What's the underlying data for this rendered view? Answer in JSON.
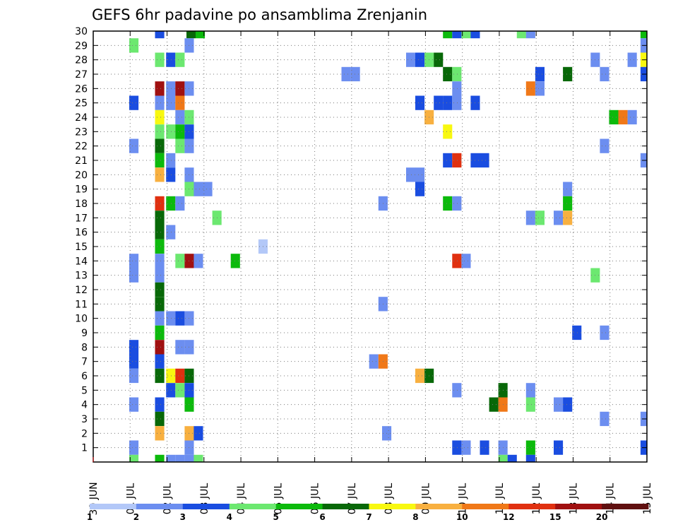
{
  "chart_data": {
    "type": "heatmap",
    "title": "GEFS 6hr padavine po ansamblima Zrenjanin",
    "xlabel": "",
    "ylabel": "",
    "x_tick_labels": [
      "30 JUN",
      "01 JUL",
      "02 JUL",
      "03 JUL",
      "04 JUL",
      "05 JUL",
      "06 JUL",
      "07 JUL",
      "08 JUL",
      "09 JUL",
      "10 JUL",
      "11 JUL",
      "12 JUL",
      "13 JUL",
      "14 JUL",
      "15 JUL"
    ],
    "x_range_days": [
      0,
      15
    ],
    "y_range": [
      0,
      30
    ],
    "y_tick_labels": [
      1,
      2,
      3,
      4,
      5,
      6,
      7,
      8,
      9,
      10,
      11,
      12,
      13,
      14,
      15,
      16,
      17,
      18,
      19,
      20,
      21,
      22,
      23,
      24,
      25,
      26,
      27,
      28,
      29,
      30
    ],
    "grid": true,
    "colorbar": {
      "placement": "bottom",
      "boundary_labels": [
        "1",
        "2",
        "3",
        "4",
        "5",
        "6",
        "7",
        "8",
        "10",
        "12",
        "15",
        "20"
      ],
      "colors": [
        "#b3c8f8",
        "#6c8ef0",
        "#1a4de0",
        "#6ce870",
        "#0cba0c",
        "#086808",
        "#f8f810",
        "#f8b040",
        "#f07818",
        "#e03010",
        "#a01010",
        "#601010"
      ]
    },
    "levels_legend": "cell level index L means precipitation between the L-th and (L+1)-th colorbar boundary",
    "cells": [
      [
        30,
        1.8,
        2
      ],
      [
        30,
        2.65,
        5
      ],
      [
        30,
        2.9,
        4
      ],
      [
        30,
        9.6,
        4
      ],
      [
        30,
        9.85,
        2
      ],
      [
        30,
        10.1,
        3
      ],
      [
        30,
        10.35,
        2
      ],
      [
        30,
        11.6,
        3
      ],
      [
        30,
        11.85,
        1
      ],
      [
        30,
        14.95,
        4
      ],
      [
        29,
        1.1,
        3
      ],
      [
        29,
        2.6,
        1
      ],
      [
        29,
        14.95,
        1
      ],
      [
        28,
        1.8,
        3
      ],
      [
        28,
        2.1,
        2
      ],
      [
        28,
        2.35,
        3
      ],
      [
        28,
        8.6,
        1
      ],
      [
        28,
        8.85,
        2
      ],
      [
        28,
        9.1,
        3
      ],
      [
        28,
        9.35,
        5
      ],
      [
        28,
        13.6,
        1
      ],
      [
        28,
        14.6,
        1
      ],
      [
        28,
        14.95,
        6
      ],
      [
        27,
        6.85,
        1
      ],
      [
        27,
        7.1,
        1
      ],
      [
        27,
        9.6,
        5
      ],
      [
        27,
        9.85,
        3
      ],
      [
        27,
        12.1,
        2
      ],
      [
        27,
        12.85,
        5
      ],
      [
        27,
        13.85,
        1
      ],
      [
        27,
        14.95,
        2
      ],
      [
        26,
        1.8,
        10
      ],
      [
        26,
        2.1,
        1
      ],
      [
        26,
        2.35,
        10
      ],
      [
        26,
        2.6,
        1
      ],
      [
        26,
        9.85,
        1
      ],
      [
        26,
        11.85,
        8
      ],
      [
        26,
        12.1,
        1
      ],
      [
        25,
        1.1,
        2
      ],
      [
        25,
        1.8,
        1
      ],
      [
        25,
        2.1,
        1
      ],
      [
        25,
        2.35,
        8
      ],
      [
        25,
        8.85,
        2
      ],
      [
        25,
        9.35,
        2
      ],
      [
        25,
        9.6,
        2
      ],
      [
        25,
        9.85,
        1
      ],
      [
        25,
        10.35,
        2
      ],
      [
        24,
        1.8,
        6
      ],
      [
        24,
        2.35,
        1
      ],
      [
        24,
        2.6,
        3
      ],
      [
        24,
        9.1,
        7
      ],
      [
        24,
        14.1,
        4
      ],
      [
        24,
        14.35,
        8
      ],
      [
        24,
        14.6,
        1
      ],
      [
        23,
        1.8,
        3
      ],
      [
        23,
        2.1,
        3
      ],
      [
        23,
        2.35,
        4
      ],
      [
        23,
        2.6,
        2
      ],
      [
        23,
        9.6,
        6
      ],
      [
        22,
        1.1,
        1
      ],
      [
        22,
        1.8,
        5
      ],
      [
        22,
        2.35,
        3
      ],
      [
        22,
        2.6,
        1
      ],
      [
        22,
        13.85,
        1
      ],
      [
        21,
        1.8,
        4
      ],
      [
        21,
        2.1,
        1
      ],
      [
        21,
        9.6,
        2
      ],
      [
        21,
        9.85,
        9
      ],
      [
        21,
        10.35,
        2
      ],
      [
        21,
        10.6,
        2
      ],
      [
        21,
        14.95,
        1
      ],
      [
        20,
        1.8,
        7
      ],
      [
        20,
        2.1,
        2
      ],
      [
        20,
        2.6,
        1
      ],
      [
        20,
        8.6,
        1
      ],
      [
        20,
        8.85,
        1
      ],
      [
        19,
        2.6,
        3
      ],
      [
        19,
        2.85,
        1
      ],
      [
        19,
        3.1,
        1
      ],
      [
        19,
        8.85,
        2
      ],
      [
        19,
        12.85,
        1
      ],
      [
        18,
        1.8,
        9
      ],
      [
        18,
        2.1,
        4
      ],
      [
        18,
        2.35,
        1
      ],
      [
        18,
        7.85,
        1
      ],
      [
        18,
        9.6,
        4
      ],
      [
        18,
        9.85,
        1
      ],
      [
        18,
        12.85,
        4
      ],
      [
        17,
        1.8,
        5
      ],
      [
        17,
        3.35,
        3
      ],
      [
        17,
        11.85,
        1
      ],
      [
        17,
        12.1,
        3
      ],
      [
        17,
        12.6,
        1
      ],
      [
        17,
        12.85,
        7
      ],
      [
        16,
        1.8,
        5
      ],
      [
        16,
        2.1,
        1
      ],
      [
        15,
        1.8,
        4
      ],
      [
        15,
        4.6,
        0
      ],
      [
        14,
        1.1,
        1
      ],
      [
        14,
        1.8,
        1
      ],
      [
        14,
        2.35,
        3
      ],
      [
        14,
        2.6,
        10
      ],
      [
        14,
        2.85,
        1
      ],
      [
        14,
        3.85,
        4
      ],
      [
        14,
        9.85,
        9
      ],
      [
        14,
        10.1,
        1
      ],
      [
        13,
        1.1,
        1
      ],
      [
        13,
        1.8,
        1
      ],
      [
        13,
        13.6,
        3
      ],
      [
        12,
        1.8,
        5
      ],
      [
        11,
        1.8,
        5
      ],
      [
        11,
        7.85,
        1
      ],
      [
        10,
        1.8,
        1
      ],
      [
        10,
        2.1,
        1
      ],
      [
        10,
        2.35,
        2
      ],
      [
        10,
        2.6,
        1
      ],
      [
        9,
        1.8,
        4
      ],
      [
        9,
        13.1,
        2
      ],
      [
        9,
        13.85,
        1
      ],
      [
        8,
        1.1,
        2
      ],
      [
        8,
        1.8,
        10
      ],
      [
        8,
        2.35,
        1
      ],
      [
        8,
        2.6,
        1
      ],
      [
        7,
        1.1,
        2
      ],
      [
        7,
        1.8,
        2
      ],
      [
        7,
        7.6,
        1
      ],
      [
        7,
        7.85,
        8
      ],
      [
        6,
        1.1,
        1
      ],
      [
        6,
        1.8,
        5
      ],
      [
        6,
        2.1,
        6
      ],
      [
        6,
        2.35,
        9
      ],
      [
        6,
        2.6,
        5
      ],
      [
        6,
        8.85,
        7
      ],
      [
        6,
        9.1,
        5
      ],
      [
        5,
        2.1,
        2
      ],
      [
        5,
        2.35,
        3
      ],
      [
        5,
        2.6,
        2
      ],
      [
        5,
        9.85,
        1
      ],
      [
        5,
        11.1,
        5
      ],
      [
        5,
        11.85,
        1
      ],
      [
        4,
        1.1,
        1
      ],
      [
        4,
        1.8,
        2
      ],
      [
        4,
        2.6,
        4
      ],
      [
        4,
        10.85,
        5
      ],
      [
        4,
        11.1,
        8
      ],
      [
        4,
        11.85,
        3
      ],
      [
        4,
        12.6,
        1
      ],
      [
        4,
        12.85,
        2
      ],
      [
        3,
        1.8,
        5
      ],
      [
        3,
        13.85,
        1
      ],
      [
        3,
        14.95,
        1
      ],
      [
        2,
        1.8,
        7
      ],
      [
        2,
        2.6,
        7
      ],
      [
        2,
        2.85,
        2
      ],
      [
        2,
        7.95,
        1
      ],
      [
        1,
        1.1,
        1
      ],
      [
        1,
        2.6,
        1
      ],
      [
        1,
        9.85,
        2
      ],
      [
        1,
        10.1,
        1
      ],
      [
        1,
        10.6,
        2
      ],
      [
        1,
        11.1,
        1
      ],
      [
        1,
        11.85,
        4
      ],
      [
        1,
        12.6,
        2
      ],
      [
        1,
        14.95,
        2
      ],
      [
        0,
        1.1,
        3
      ],
      [
        0,
        1.8,
        4
      ],
      [
        0,
        2.1,
        1
      ],
      [
        0,
        2.35,
        1
      ],
      [
        0,
        2.6,
        1
      ],
      [
        0,
        2.85,
        3
      ],
      [
        0,
        11.1,
        3
      ],
      [
        0,
        11.35,
        2
      ],
      [
        0,
        11.85,
        2
      ]
    ]
  }
}
